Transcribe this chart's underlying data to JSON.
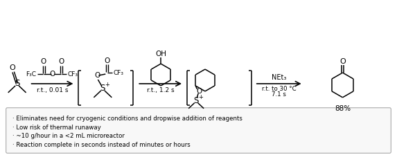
{
  "background_color": "#ffffff",
  "bullet_lines": [
    "· Eliminates need for cryogenic conditions and dropwise addition of reagents",
    "· Low risk of thermal runaway",
    "· ~10 g/hour in a <2 mL microreactor",
    "· Reaction complete in seconds instead of minutes or hours"
  ],
  "arrow1_label": "r.t., 0.01 s",
  "arrow2_label": "r.t., 1.2 s",
  "arrow3_label_top": "NEt₃",
  "arrow3_label_bot1": "r.t. to 30 °C",
  "arrow3_label_bot2": "7.1 s",
  "yield_label": "88%"
}
